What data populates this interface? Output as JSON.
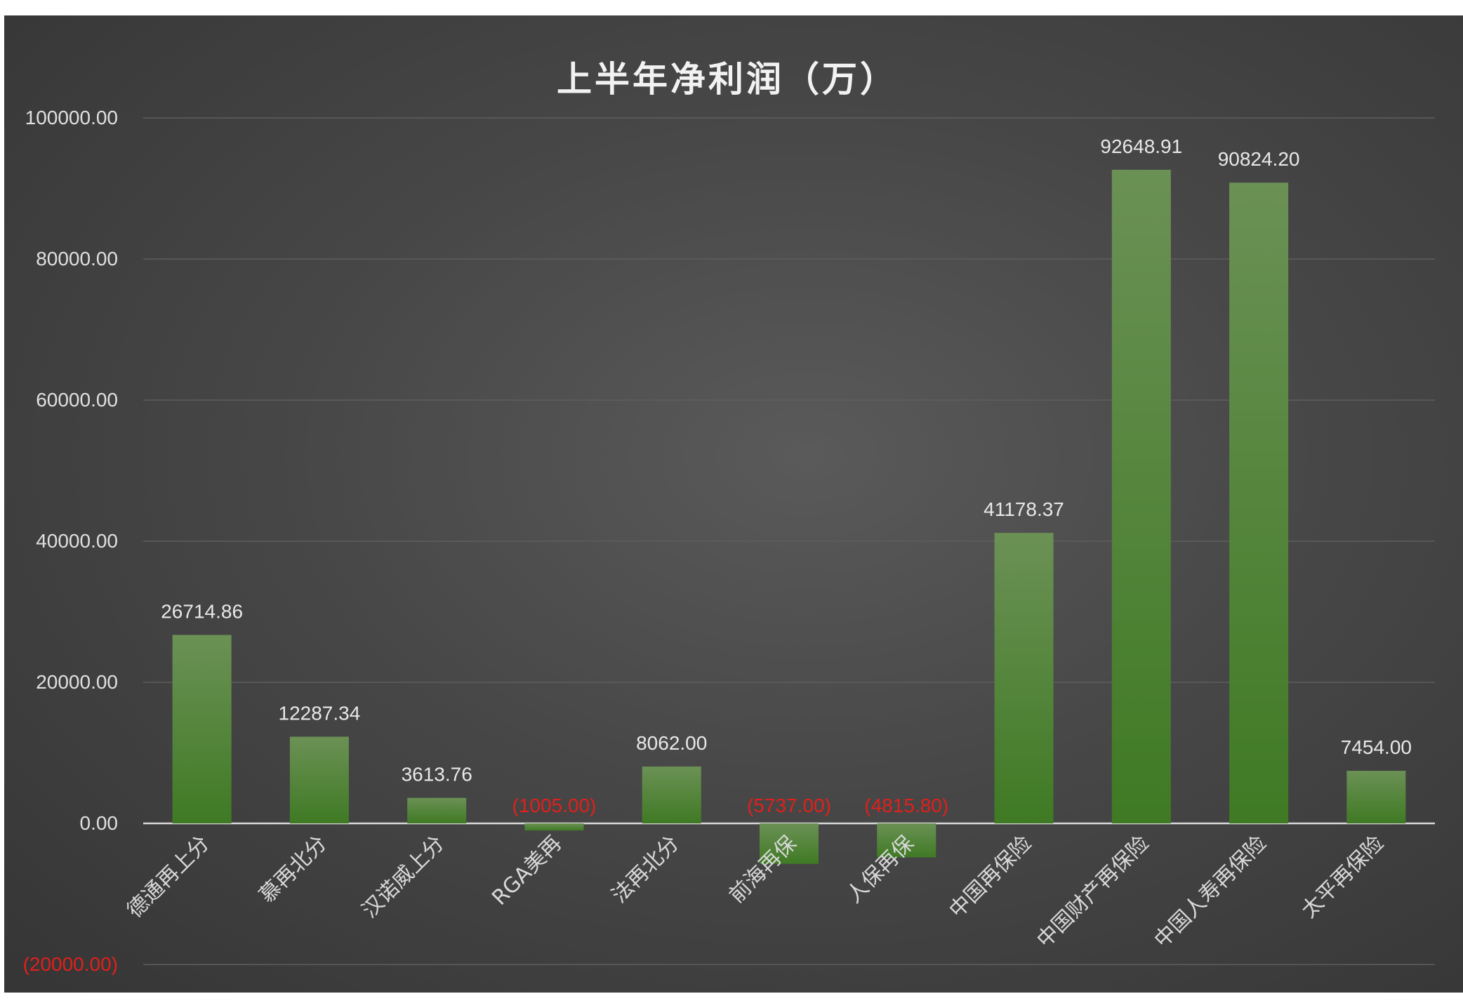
{
  "chart_data": {
    "type": "bar",
    "title": "上半年净利润（万）",
    "categories": [
      "德通再上分",
      "慕再北分",
      "汉诺威上分",
      "RGA美再",
      "法再北分",
      "前海再保",
      "人保再保",
      "中国再保险",
      "中国财产再保险",
      "中国人寿再保险",
      "太平再保险"
    ],
    "values": [
      26714.86,
      12287.34,
      3613.76,
      -1005.0,
      8062.0,
      -5737.0,
      -4815.8,
      41178.37,
      92648.91,
      90824.2,
      7454.0
    ],
    "data_labels": [
      "26714.86",
      "12287.34",
      "3613.76",
      "(1005.00)",
      "8062.00",
      "(5737.00)",
      "(4815.80)",
      "41178.37",
      "92648.91",
      "90824.20",
      "7454.00"
    ],
    "y_ticks": [
      100000,
      80000,
      60000,
      40000,
      20000,
      0,
      -20000
    ],
    "y_tick_labels": [
      "100000.00",
      "80000.00",
      "60000.00",
      "40000.00",
      "20000.00",
      "0.00",
      "(20000.00)"
    ],
    "ylim": [
      -20000,
      100000
    ],
    "xlabel": "",
    "ylabel": "",
    "grid": true,
    "legend": "none",
    "colors": {
      "bar_top": "#6b9155",
      "bar_bottom": "#3f7a24",
      "negative_label": "#e0201c",
      "grid": "#5e5e5e",
      "zero_line": "#d9d9d9"
    }
  }
}
